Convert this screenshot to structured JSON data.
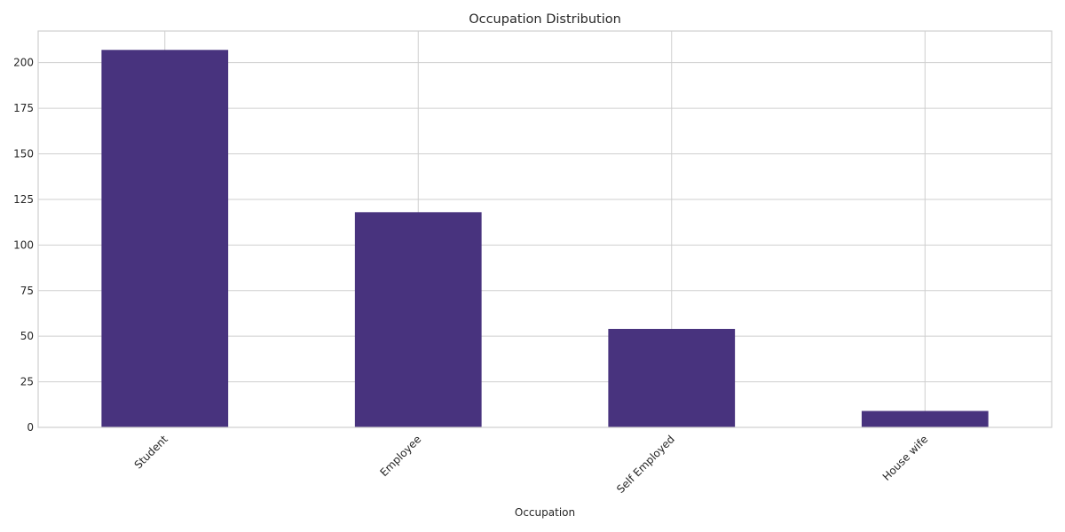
{
  "chart_data": {
    "type": "bar",
    "title": "Occupation Distribution",
    "xlabel": "Occupation",
    "ylabel": "",
    "categories": [
      "Student",
      "Employee",
      "Self Employed",
      "House wife"
    ],
    "values": [
      207,
      118,
      54,
      9
    ],
    "ylim": [
      0,
      217.35
    ],
    "yticks": [
      0,
      25,
      50,
      75,
      100,
      125,
      150,
      175,
      200
    ],
    "ytick_labels": [
      "0",
      "25",
      "50",
      "75",
      "100",
      "125",
      "150",
      "175",
      "200"
    ],
    "grid": true,
    "bar_color": "#48337E",
    "xtick_rotation": -45
  }
}
